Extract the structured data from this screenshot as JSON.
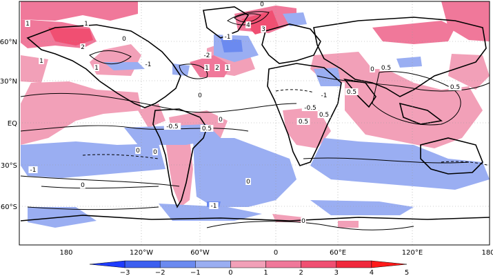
{
  "map": {
    "lat_ticks": [
      "60°N",
      "30°N",
      "EQ",
      "30°S",
      "60°S"
    ],
    "lon_ticks": [
      "180",
      "120°W",
      "60°W",
      "0",
      "60°E",
      "120°E",
      "180"
    ],
    "contour_labels": [
      "1",
      "2",
      "1",
      "1",
      "1",
      "0",
      "-1",
      "-2",
      "1",
      "2",
      "1",
      "0",
      "-1",
      "4",
      "3",
      "0",
      "0.5",
      "-1",
      "0.5",
      "0.5",
      "0",
      "-0.5",
      "0",
      "0.5",
      "0.5",
      "0.5",
      "-0.5",
      "0",
      "0",
      "-1",
      "0",
      "0",
      "-1",
      "0"
    ]
  },
  "colorbar": {
    "tick_labels": [
      "-3",
      "-2",
      "-1",
      "0",
      "1",
      "2",
      "3",
      "4",
      "5"
    ],
    "bins": [
      {
        "from": -3.5,
        "to": -3,
        "color": "#1e3cff"
      },
      {
        "from": -3,
        "to": -2,
        "color": "#3c5ff0"
      },
      {
        "from": -2,
        "to": -1,
        "color": "#6b8af0"
      },
      {
        "from": -1,
        "to": 0,
        "color": "#9aaef2"
      },
      {
        "from": 0,
        "to": 1,
        "color": "#f2a0b8"
      },
      {
        "from": 1,
        "to": 2,
        "color": "#f0789a"
      },
      {
        "from": 2,
        "to": 3,
        "color": "#f04f72"
      },
      {
        "from": 3,
        "to": 4,
        "color": "#f0283c"
      },
      {
        "from": 4,
        "to": 5,
        "color": "#ff1a1a"
      }
    ]
  },
  "colors": {
    "neg_light": "#9aaef2",
    "neg_mid": "#6b8af0",
    "neg_dark": "#3c5ff0",
    "pos_light": "#f2a0b8",
    "pos_mid": "#f0789a",
    "pos_dark": "#f04f72",
    "pos_max": "#ff1a1a"
  }
}
